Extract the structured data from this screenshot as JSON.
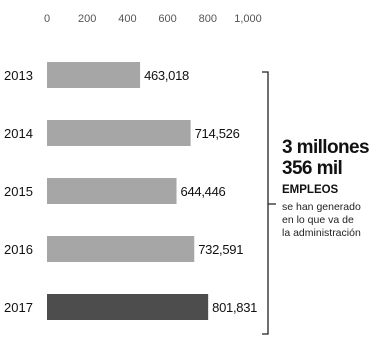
{
  "chart_data": {
    "type": "bar",
    "orientation": "horizontal",
    "categories": [
      "2013",
      "2014",
      "2015",
      "2016",
      "2017"
    ],
    "values": [
      463018,
      714526,
      644446,
      732591,
      801831
    ],
    "value_labels": [
      "463,018",
      "714,526",
      "644,446",
      "732,591",
      "801,831"
    ],
    "x_ticks": [
      "0",
      "200",
      "400",
      "600",
      "800",
      "1,000"
    ],
    "x_axis_position": "top",
    "x_scale_note": "ticks in thousands",
    "xlim": [
      0,
      1000000
    ],
    "grid": false,
    "legend": "none",
    "colors": {
      "bar": "#a6a6a6",
      "bar_highlight": "#4d4d4d",
      "text": "#111111"
    },
    "highlight_category": "2017"
  },
  "callout": {
    "headline_line1": "3 millones",
    "headline_line2": "356 mil",
    "label": "EMPLEOS",
    "desc_line1": "se han generado",
    "desc_line2": "en lo que va de",
    "desc_line3": "la administración"
  }
}
